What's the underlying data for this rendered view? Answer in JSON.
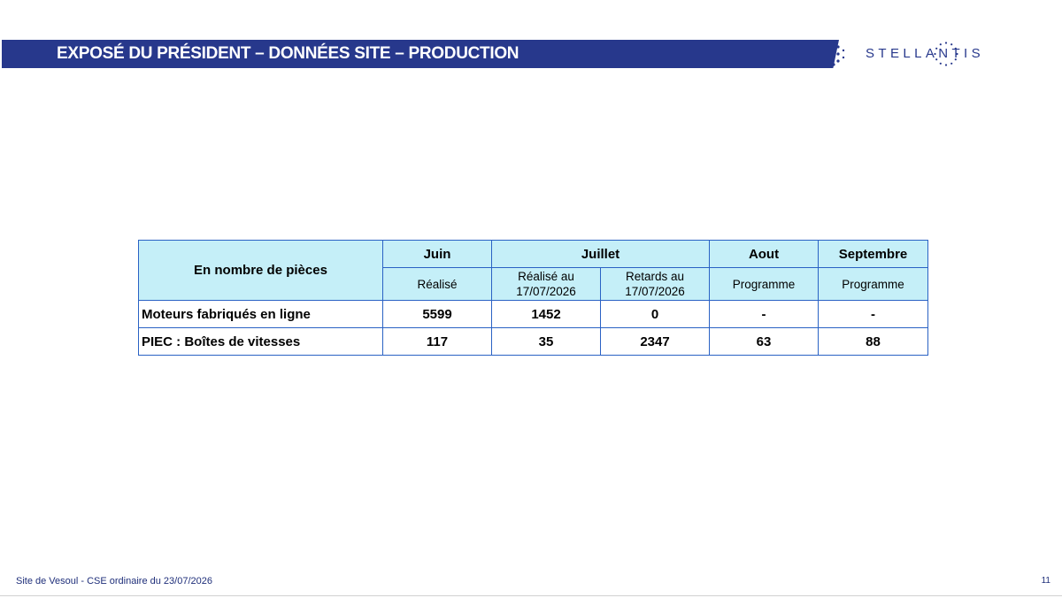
{
  "header": {
    "title": "EXPOSÉ DU PRÉSIDENT – DONNÉES SITE – PRODUCTION",
    "brand": "STELLANTIS",
    "banner_color": "#27388c"
  },
  "table": {
    "corner_label": "En nombre de pièces",
    "months": {
      "juin": "Juin",
      "juillet": "Juillet",
      "aout": "Aout",
      "septembre": "Septembre"
    },
    "subheaders": {
      "juin": "Réalisé",
      "juillet_realise_line1": "Réalisé au",
      "juillet_realise_line2": "17/07/2026",
      "juillet_retards_line1": "Retards au",
      "juillet_retards_line2": "17/07/2026",
      "aout": "Programme",
      "septembre": "Programme"
    },
    "rows": [
      {
        "label": "Moteurs fabriqués en ligne",
        "juin": "5599",
        "juillet_realise": "1452",
        "juillet_retards": "0",
        "aout": "-",
        "septembre": "-"
      },
      {
        "label": "PIEC : Boîtes de vitesses",
        "juin": "117",
        "juillet_realise": "35",
        "juillet_retards": "2347",
        "aout": "63",
        "septembre": "88"
      }
    ],
    "header_bg": "#c5eff8",
    "border_color": "#2a62c4"
  },
  "footer": {
    "left_text": "Site de Vesoul - CSE ordinaire du 23/07/2026",
    "page_number": "11"
  }
}
